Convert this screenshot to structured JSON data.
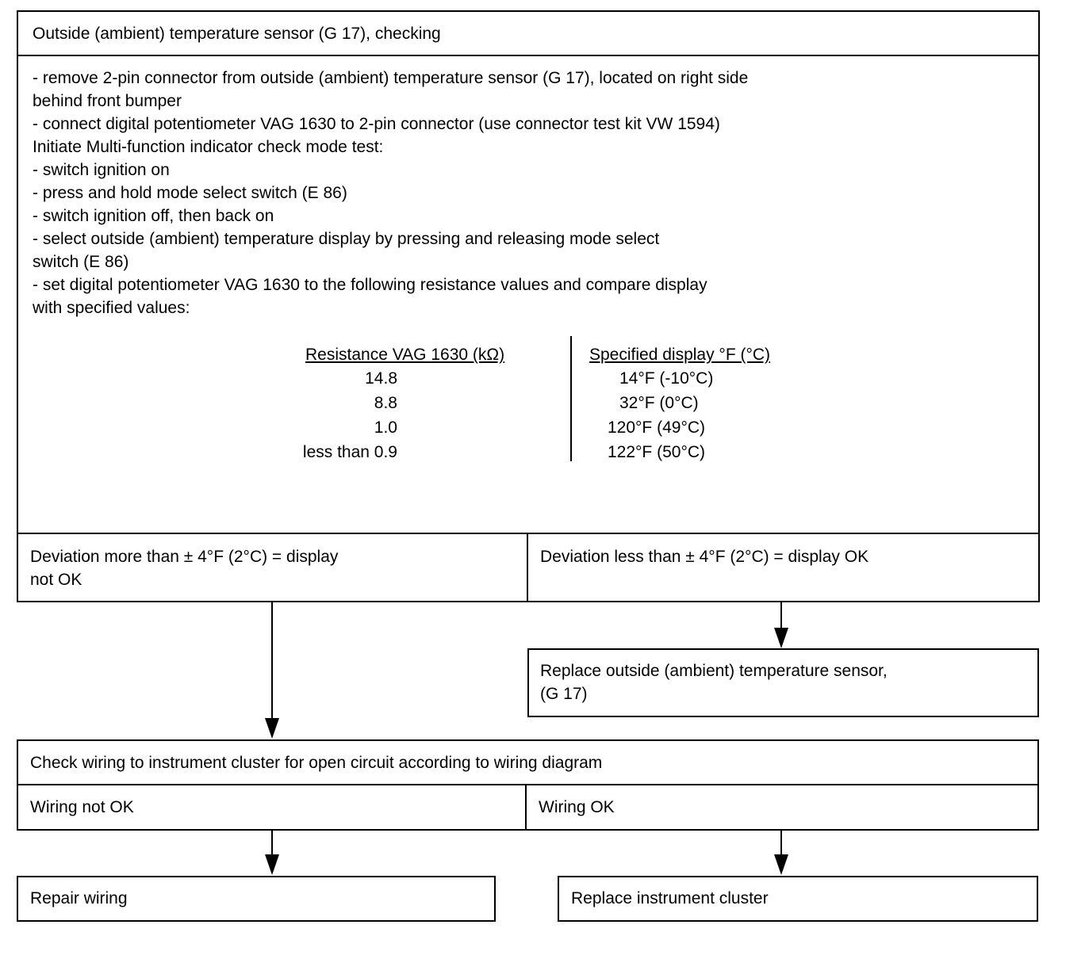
{
  "main_box": {
    "title": "Outside (ambient) temperature sensor (G 17), checking",
    "instructions": [
      "- remove 2-pin connector from outside (ambient) temperature sensor (G 17), located on right side",
      "   behind front bumper",
      "- connect digital potentiometer VAG 1630 to 2-pin connector (use connector test kit VW 1594)",
      "Initiate Multi-function indicator check mode test:",
      "- switch ignition on",
      "- press and hold mode select switch (E 86)",
      "- switch ignition off, then back on",
      "- select outside (ambient) temperature display by pressing and releasing mode select",
      "   switch (E 86)",
      "- set digital potentiometer VAG 1630 to the following resistance values and compare display",
      "  with specified values:"
    ],
    "table": {
      "headers": [
        "Resistance VAG 1630 (kΩ)",
        "Specified display °F (°C)"
      ],
      "rows": [
        [
          "14.8",
          "14°F (-10°C)"
        ],
        [
          "8.8",
          "32°F (0°C)"
        ],
        [
          "1.0",
          "120°F (49°C)"
        ],
        [
          "less than 0.9",
          "122°F (50°C)"
        ]
      ]
    }
  },
  "deviation": {
    "not_ok": [
      "Deviation more than ± 4°F (2°C) = display",
      "not OK"
    ],
    "ok": "Deviation less than ± 4°F (2°C) = display  OK"
  },
  "replace_sensor": [
    "Replace outside (ambient) temperature sensor,",
    "(G 17)"
  ],
  "check_wiring": {
    "title": "Check wiring to instrument cluster for open circuit according to wiring diagram",
    "not_ok": "Wiring not OK",
    "ok": "Wiring OK"
  },
  "repair_wiring": "Repair wiring",
  "replace_cluster": "Replace instrument cluster"
}
